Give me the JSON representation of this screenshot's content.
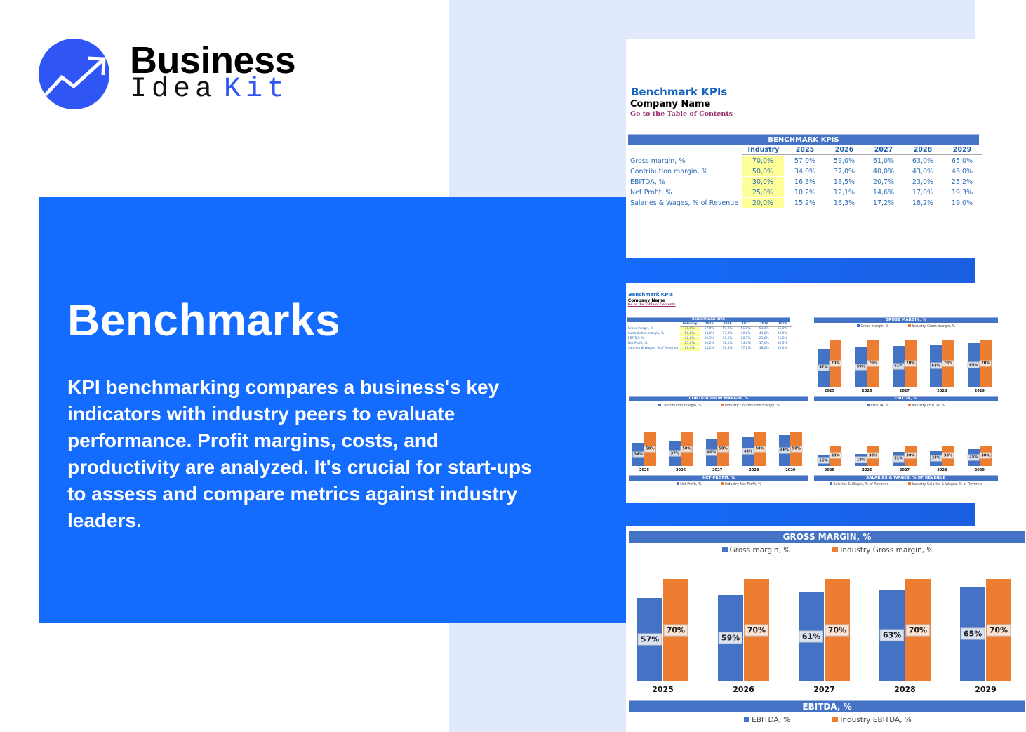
{
  "logo": {
    "line1": "Business",
    "line2a": "Idea",
    "line2b": "Kit",
    "icon": "trend-arrow-icon"
  },
  "hero": {
    "title": "Benchmarks",
    "text": "KPI benchmarking compares a business's key indicators with industry peers to evaluate performance. Profit margins, costs, and productivity are analyzed. It's crucial for start-ups to assess and compare metrics against industry leaders."
  },
  "colors": {
    "brand": "#2f56f5",
    "hero": "#146cff",
    "series_company": "#4472c4",
    "series_industry": "#ed7d31",
    "industry_highlight": "#ffff99"
  },
  "sheet": {
    "title": "Benchmark KPIs",
    "company": "Company Name",
    "link": "Go to the Table of Contents",
    "table": {
      "title": "BENCHMARK KPIS",
      "columns": [
        "Industry",
        "2025",
        "2026",
        "2027",
        "2028",
        "2029"
      ],
      "rows": [
        {
          "label": "Gross margin, %",
          "values": [
            "70,0%",
            "57,0%",
            "59,0%",
            "61,0%",
            "63,0%",
            "65,0%"
          ]
        },
        {
          "label": "Contribution margin, %",
          "values": [
            "50,0%",
            "34,0%",
            "37,0%",
            "40,0%",
            "43,0%",
            "46,0%"
          ]
        },
        {
          "label": "EBITDA, %",
          "values": [
            "30,0%",
            "16,3%",
            "18,5%",
            "20,7%",
            "23,0%",
            "25,2%"
          ]
        },
        {
          "label": "Net Profit, %",
          "values": [
            "25,0%",
            "10,2%",
            "12,1%",
            "14,6%",
            "17,0%",
            "19,3%"
          ]
        },
        {
          "label": "Salaries & Wages, % of Revenue",
          "values": [
            "20,0%",
            "15,2%",
            "16,3%",
            "17,2%",
            "18,2%",
            "19,0%"
          ]
        }
      ]
    }
  },
  "chart_data": [
    {
      "type": "bar",
      "title": "GROSS MARGIN, %",
      "categories": [
        "2025",
        "2026",
        "2027",
        "2028",
        "2029"
      ],
      "series": [
        {
          "name": "Gross margin, %",
          "values": [
            57,
            59,
            61,
            63,
            65
          ]
        },
        {
          "name": "Industry Gross margin, %",
          "values": [
            70,
            70,
            70,
            70,
            70
          ]
        }
      ]
    },
    {
      "type": "bar",
      "title": "CONTRIBUTION MARGIN, %",
      "categories": [
        "2025",
        "2026",
        "2027",
        "2028",
        "2029"
      ],
      "series": [
        {
          "name": "Contribution margin, %",
          "values": [
            34,
            37,
            40,
            43,
            46
          ]
        },
        {
          "name": "Industry Contribution margin, %",
          "values": [
            50,
            50,
            50,
            50,
            50
          ]
        }
      ]
    },
    {
      "type": "bar",
      "title": "EBITDA, %",
      "categories": [
        "2025",
        "2026",
        "2027",
        "2028",
        "2029"
      ],
      "series": [
        {
          "name": "EBITDA, %",
          "values": [
            16,
            18,
            21,
            23,
            25
          ]
        },
        {
          "name": "Industry EBITDA, %",
          "values": [
            30,
            30,
            30,
            30,
            30
          ]
        }
      ]
    },
    {
      "type": "bar",
      "title": "NET PROFIT, %",
      "categories": [],
      "series": [
        {
          "name": "Net Profit, %"
        },
        {
          "name": "Industry Net Profit, %"
        }
      ]
    },
    {
      "type": "bar",
      "title": "SALARIES & WAGES, % OF REVENUE",
      "categories": [],
      "series": [
        {
          "name": "Salaries & Wages, % of Revenue"
        },
        {
          "name": "Industry Salaries & Wages, % of Revenue"
        }
      ]
    }
  ]
}
